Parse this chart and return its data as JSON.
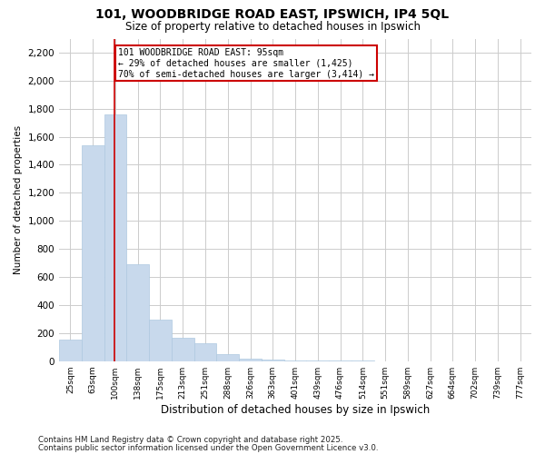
{
  "title": "101, WOODBRIDGE ROAD EAST, IPSWICH, IP4 5QL",
  "subtitle": "Size of property relative to detached houses in Ipswich",
  "xlabel": "Distribution of detached houses by size in Ipswich",
  "ylabel": "Number of detached properties",
  "annotation_line1": "101 WOODBRIDGE ROAD EAST: 95sqm",
  "annotation_line2": "← 29% of detached houses are smaller (1,425)",
  "annotation_line3": "70% of semi-detached houses are larger (3,414) →",
  "bar_color": "#c8d9ec",
  "bar_edge_color": "#aec9e0",
  "line_color": "#cc0000",
  "annotation_box_edge_color": "#cc0000",
  "categories": [
    "25sqm",
    "63sqm",
    "100sqm",
    "138sqm",
    "175sqm",
    "213sqm",
    "251sqm",
    "288sqm",
    "326sqm",
    "363sqm",
    "401sqm",
    "439sqm",
    "476sqm",
    "514sqm",
    "551sqm",
    "589sqm",
    "627sqm",
    "664sqm",
    "702sqm",
    "739sqm",
    "777sqm"
  ],
  "values": [
    155,
    1540,
    1760,
    690,
    295,
    165,
    130,
    50,
    20,
    10,
    5,
    3,
    2,
    2,
    1,
    1,
    1,
    0,
    0,
    0,
    0
  ],
  "ylim": [
    0,
    2300
  ],
  "yticks": [
    0,
    200,
    400,
    600,
    800,
    1000,
    1200,
    1400,
    1600,
    1800,
    2000,
    2200
  ],
  "line_x_index": 1.97,
  "footnote1": "Contains HM Land Registry data © Crown copyright and database right 2025.",
  "footnote2": "Contains public sector information licensed under the Open Government Licence v3.0.",
  "background_color": "#ffffff",
  "grid_color": "#cccccc"
}
